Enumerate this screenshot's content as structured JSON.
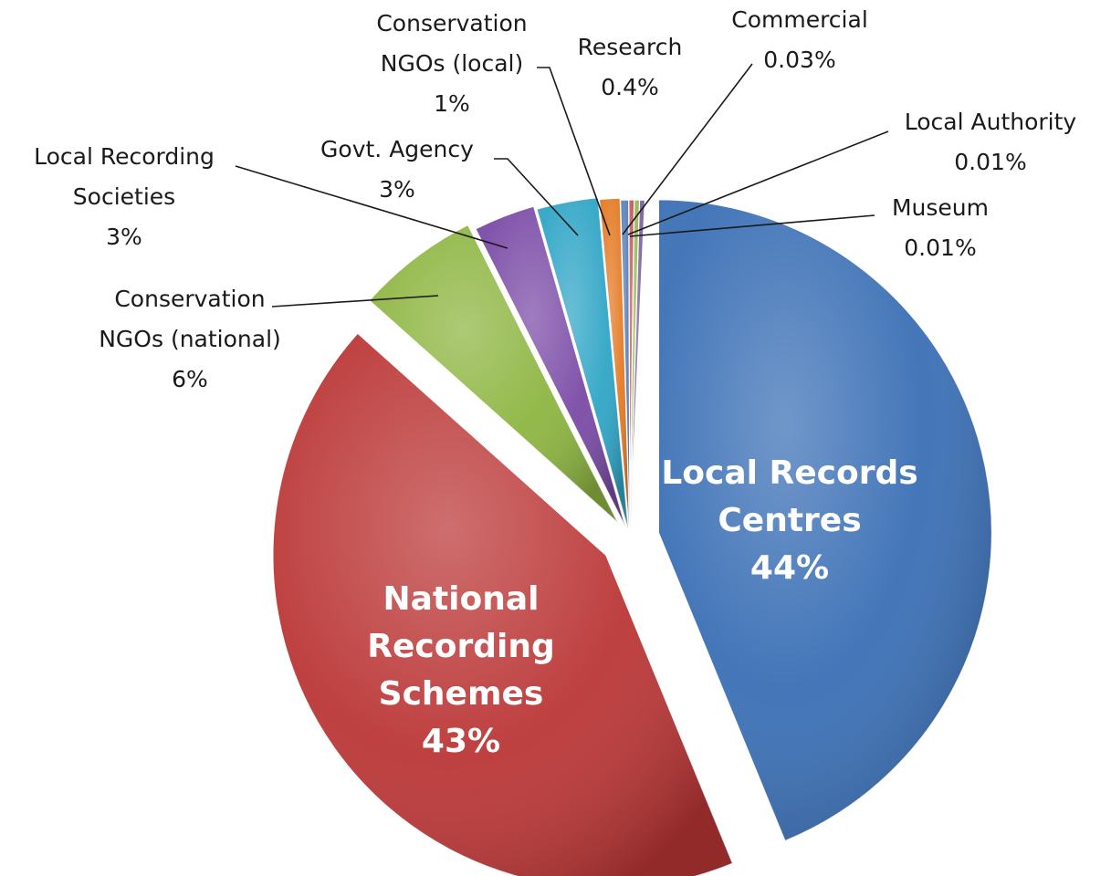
{
  "chart_data": {
    "type": "pie",
    "title": "",
    "slices": [
      {
        "name": "Local Records Centres",
        "label_lines": [
          "Local Records",
          "Centres",
          "44%"
        ],
        "value": 44,
        "color": "#3a6fb5",
        "label_inside": true
      },
      {
        "name": "National Recording Schemes",
        "label_lines": [
          "National",
          "Recording",
          "Schemes",
          "43%"
        ],
        "value": 43,
        "color": "#bb3636",
        "label_inside": true
      },
      {
        "name": "Conservation NGOs (national)",
        "label_lines": [
          "Conservation",
          "NGOs (national)",
          "6%"
        ],
        "value": 6,
        "color": "#8db540",
        "label_inside": false
      },
      {
        "name": "Local Recording Societies",
        "label_lines": [
          "Local Recording",
          "Societies",
          "3%"
        ],
        "value": 3,
        "color": "#7a4aa6",
        "label_inside": false
      },
      {
        "name": "Govt. Agency",
        "label_lines": [
          "Govt. Agency",
          "3%"
        ],
        "value": 3,
        "color": "#2fa5c6",
        "label_inside": false
      },
      {
        "name": "Conservation NGOs (local)",
        "label_lines": [
          "Conservation",
          "NGOs (local)",
          "1%"
        ],
        "value": 1,
        "color": "#e47a23",
        "label_inside": false
      },
      {
        "name": "Research",
        "label_lines": [
          "Research",
          "0.4%"
        ],
        "value": 0.4,
        "color": "#5a80b8",
        "label_inside": false
      },
      {
        "name": "Commercial",
        "label_lines": [
          "Commercial",
          "0.03%"
        ],
        "value": 0.03,
        "color": "#c05b57",
        "label_inside": false
      },
      {
        "name": "Local Authority",
        "label_lines": [
          "Local Authority",
          "0.01%"
        ],
        "value": 0.01,
        "color": "#9bbb59",
        "label_inside": false
      },
      {
        "name": "Museum",
        "label_lines": [
          "Museum",
          "0.01%"
        ],
        "value": 0.01,
        "color": "#8064a2",
        "label_inside": false
      }
    ]
  }
}
